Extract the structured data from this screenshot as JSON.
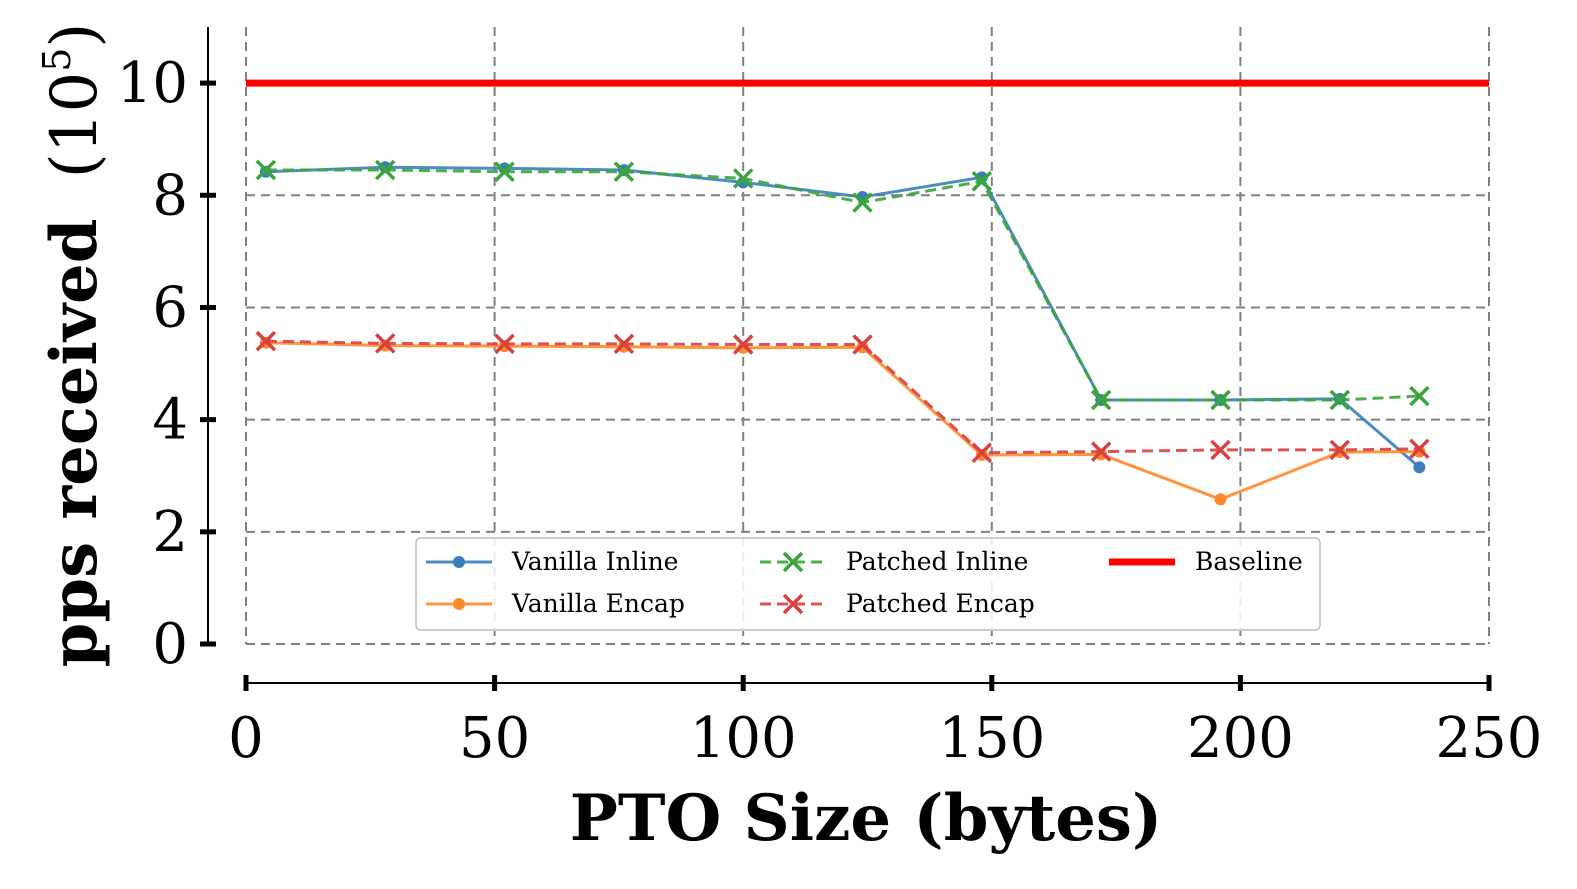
{
  "chart_data": {
    "type": "line",
    "title": "",
    "xlabel": "PTO Size (bytes)",
    "ylabel": "pps received",
    "ylabel_exponent_base": "10",
    "ylabel_exponent": "5",
    "xlim": [
      0,
      250
    ],
    "ylim": [
      0,
      11
    ],
    "xticks": [
      0,
      50,
      100,
      150,
      200,
      250
    ],
    "yticks": [
      0,
      2,
      4,
      6,
      8,
      10
    ],
    "grid": true,
    "legend_position": "lower-center",
    "series": [
      {
        "name": "Vanilla Inline",
        "color": "#3a7fb8",
        "style": "solid",
        "marker": "dot",
        "x": [
          4,
          28,
          52,
          76,
          100,
          124,
          148,
          172,
          196,
          220,
          236
        ],
        "y": [
          8.42,
          8.5,
          8.48,
          8.45,
          8.23,
          7.97,
          8.32,
          4.35,
          4.35,
          4.37,
          3.15
        ]
      },
      {
        "name": "Vanilla Encap",
        "color": "#ff8a2a",
        "style": "solid",
        "marker": "dot",
        "x": [
          4,
          28,
          52,
          76,
          100,
          124,
          148,
          172,
          196,
          220,
          236
        ],
        "y": [
          5.37,
          5.32,
          5.31,
          5.3,
          5.28,
          5.29,
          3.37,
          3.38,
          2.58,
          3.42,
          3.43
        ]
      },
      {
        "name": "Patched Inline",
        "color": "#3aa53a",
        "style": "dashed",
        "marker": "x",
        "x": [
          4,
          28,
          52,
          76,
          100,
          124,
          148,
          172,
          196,
          220,
          236
        ],
        "y": [
          8.45,
          8.45,
          8.42,
          8.42,
          8.3,
          7.87,
          8.25,
          4.35,
          4.35,
          4.35,
          4.42
        ]
      },
      {
        "name": "Patched Encap",
        "color": "#d94040",
        "style": "dashed",
        "marker": "x",
        "x": [
          4,
          28,
          52,
          76,
          100,
          124,
          148,
          172,
          196,
          220,
          236
        ],
        "y": [
          5.4,
          5.36,
          5.35,
          5.35,
          5.34,
          5.34,
          3.41,
          3.43,
          3.46,
          3.46,
          3.48
        ]
      },
      {
        "name": "Baseline",
        "color": "#ff0000",
        "style": "solid-thick",
        "marker": "none",
        "x": [
          0,
          250
        ],
        "y": [
          10,
          10
        ]
      }
    ]
  }
}
